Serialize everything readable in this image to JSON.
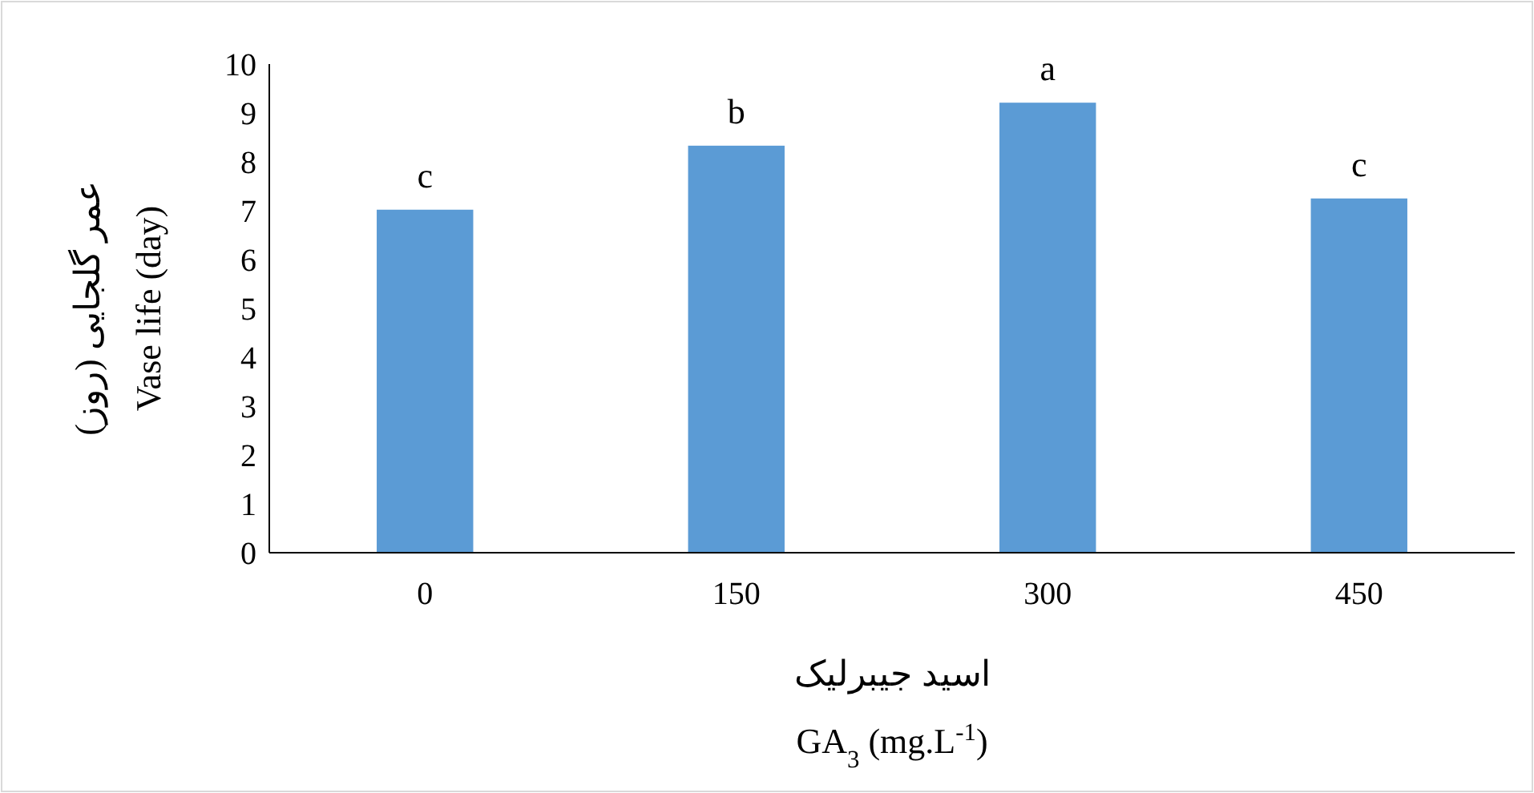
{
  "chart_data": {
    "type": "bar",
    "xlabel": "اسید جیبرلیک\nGA$_{3}$ (mg.L$^{-1}$)",
    "ylabel": "عمر گلجایی (روز)\nVase life (day)",
    "categories": [
      "0",
      "150",
      "300",
      "450"
    ],
    "values": [
      7.02,
      8.33,
      9.21,
      7.25
    ],
    "color": "#5b9bd5",
    "ylim": [
      0,
      10
    ],
    "yticks": [
      0,
      1,
      2,
      3,
      4,
      5,
      6,
      7,
      8,
      9,
      10
    ],
    "grid": false,
    "annotations": [
      {
        "text": "c",
        "x": "0",
        "y": 7.02
      },
      {
        "text": "b",
        "x": "150",
        "y": 8.33
      },
      {
        "text": "a",
        "x": "300",
        "y": 9.21
      },
      {
        "text": "c",
        "x": "450",
        "y": 7.25
      }
    ]
  }
}
